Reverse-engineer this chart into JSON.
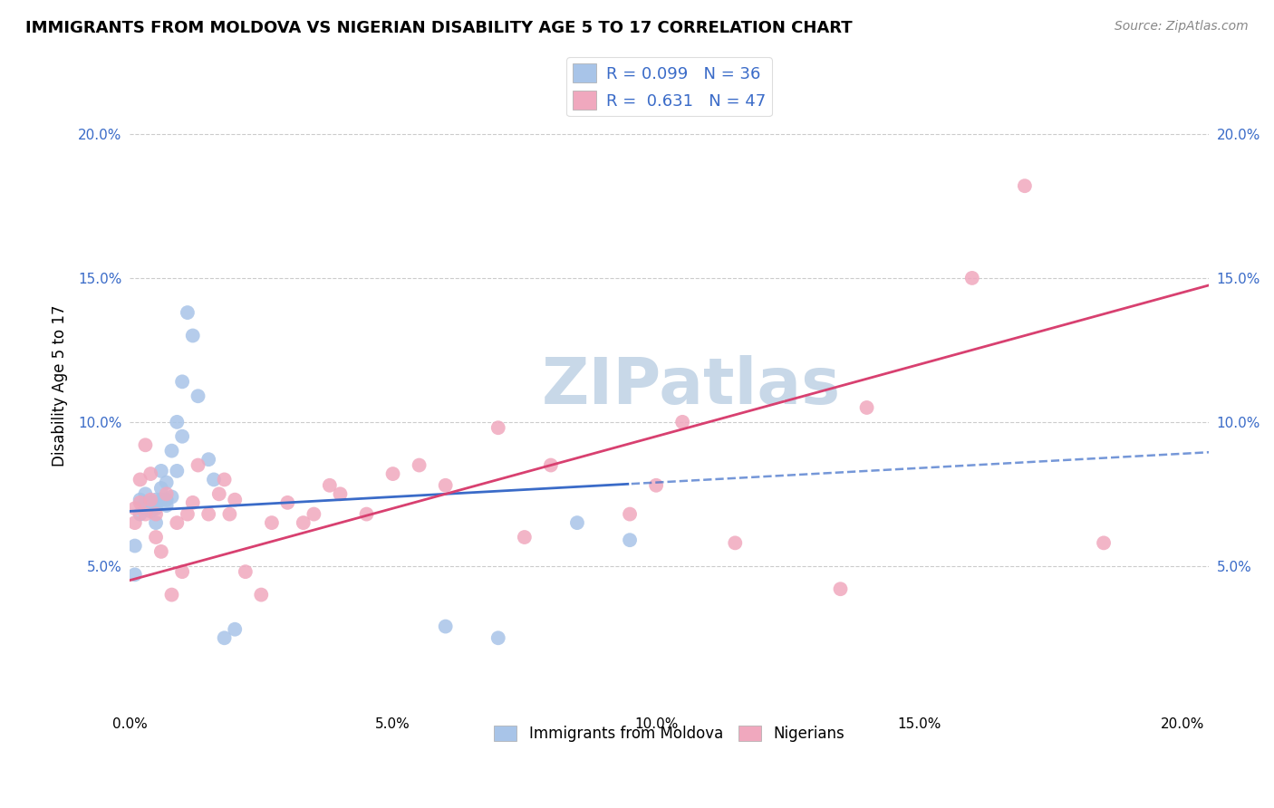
{
  "title": "IMMIGRANTS FROM MOLDOVA VS NIGERIAN DISABILITY AGE 5 TO 17 CORRELATION CHART",
  "source": "Source: ZipAtlas.com",
  "ylabel": "Disability Age 5 to 17",
  "legend1_r": "0.099",
  "legend1_n": "36",
  "legend2_r": "0.631",
  "legend2_n": "47",
  "moldova_color": "#a8c4e8",
  "nigerian_color": "#f0a8be",
  "moldova_line_color": "#3a6bc8",
  "nigerian_line_color": "#d84070",
  "watermark_color": "#c8d8e8",
  "moldova_x": [
    0.001,
    0.001,
    0.002,
    0.002,
    0.003,
    0.003,
    0.003,
    0.004,
    0.004,
    0.005,
    0.005,
    0.005,
    0.005,
    0.006,
    0.006,
    0.006,
    0.007,
    0.007,
    0.007,
    0.008,
    0.008,
    0.009,
    0.009,
    0.01,
    0.01,
    0.011,
    0.012,
    0.013,
    0.015,
    0.016,
    0.018,
    0.02,
    0.06,
    0.07,
    0.085,
    0.095
  ],
  "moldova_y": [
    0.057,
    0.047,
    0.073,
    0.068,
    0.07,
    0.075,
    0.072,
    0.069,
    0.071,
    0.073,
    0.072,
    0.07,
    0.065,
    0.073,
    0.077,
    0.083,
    0.071,
    0.073,
    0.079,
    0.074,
    0.09,
    0.083,
    0.1,
    0.095,
    0.114,
    0.138,
    0.13,
    0.109,
    0.087,
    0.08,
    0.025,
    0.028,
    0.029,
    0.025,
    0.065,
    0.059
  ],
  "nigerian_x": [
    0.001,
    0.001,
    0.002,
    0.002,
    0.003,
    0.003,
    0.004,
    0.004,
    0.005,
    0.005,
    0.006,
    0.007,
    0.008,
    0.009,
    0.01,
    0.011,
    0.012,
    0.013,
    0.015,
    0.017,
    0.018,
    0.019,
    0.02,
    0.022,
    0.025,
    0.027,
    0.03,
    0.033,
    0.035,
    0.038,
    0.04,
    0.045,
    0.05,
    0.055,
    0.06,
    0.07,
    0.075,
    0.08,
    0.095,
    0.1,
    0.105,
    0.115,
    0.135,
    0.14,
    0.16,
    0.17,
    0.185
  ],
  "nigerian_y": [
    0.07,
    0.065,
    0.072,
    0.08,
    0.068,
    0.092,
    0.073,
    0.082,
    0.068,
    0.06,
    0.055,
    0.075,
    0.04,
    0.065,
    0.048,
    0.068,
    0.072,
    0.085,
    0.068,
    0.075,
    0.08,
    0.068,
    0.073,
    0.048,
    0.04,
    0.065,
    0.072,
    0.065,
    0.068,
    0.078,
    0.075,
    0.068,
    0.082,
    0.085,
    0.078,
    0.098,
    0.06,
    0.085,
    0.068,
    0.078,
    0.1,
    0.058,
    0.042,
    0.105,
    0.15,
    0.182,
    0.058
  ],
  "xlim": [
    0.0,
    0.205
  ],
  "ylim": [
    0.0,
    0.225
  ],
  "xticks": [
    0.0,
    0.05,
    0.1,
    0.15,
    0.2
  ],
  "yticks": [
    0.05,
    0.1,
    0.15,
    0.2
  ]
}
